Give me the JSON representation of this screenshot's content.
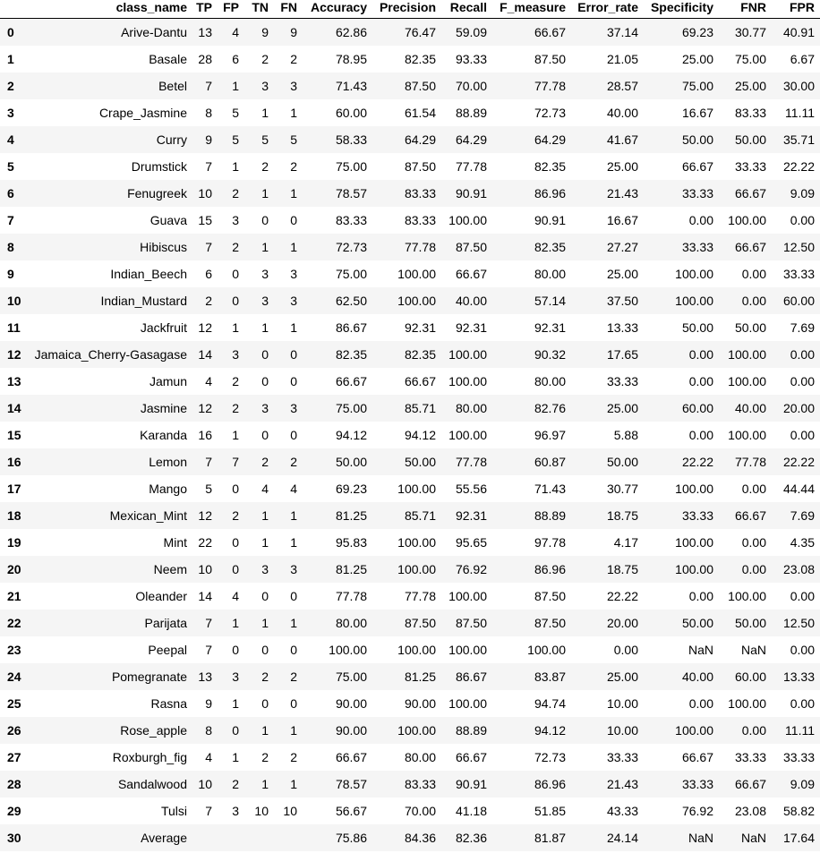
{
  "table": {
    "columns": [
      "",
      "class_name",
      "TP",
      "FP",
      "TN",
      "FN",
      "Accuracy",
      "Precision",
      "Recall",
      "F_measure",
      "Error_rate",
      "Specificity",
      "FNR",
      "FPR"
    ],
    "rows": [
      [
        "0",
        "Arive-Dantu",
        "13",
        "4",
        "9",
        "9",
        "62.86",
        "76.47",
        "59.09",
        "66.67",
        "37.14",
        "69.23",
        "30.77",
        "40.91"
      ],
      [
        "1",
        "Basale",
        "28",
        "6",
        "2",
        "2",
        "78.95",
        "82.35",
        "93.33",
        "87.50",
        "21.05",
        "25.00",
        "75.00",
        "6.67"
      ],
      [
        "2",
        "Betel",
        "7",
        "1",
        "3",
        "3",
        "71.43",
        "87.50",
        "70.00",
        "77.78",
        "28.57",
        "75.00",
        "25.00",
        "30.00"
      ],
      [
        "3",
        "Crape_Jasmine",
        "8",
        "5",
        "1",
        "1",
        "60.00",
        "61.54",
        "88.89",
        "72.73",
        "40.00",
        "16.67",
        "83.33",
        "11.11"
      ],
      [
        "4",
        "Curry",
        "9",
        "5",
        "5",
        "5",
        "58.33",
        "64.29",
        "64.29",
        "64.29",
        "41.67",
        "50.00",
        "50.00",
        "35.71"
      ],
      [
        "5",
        "Drumstick",
        "7",
        "1",
        "2",
        "2",
        "75.00",
        "87.50",
        "77.78",
        "82.35",
        "25.00",
        "66.67",
        "33.33",
        "22.22"
      ],
      [
        "6",
        "Fenugreek",
        "10",
        "2",
        "1",
        "1",
        "78.57",
        "83.33",
        "90.91",
        "86.96",
        "21.43",
        "33.33",
        "66.67",
        "9.09"
      ],
      [
        "7",
        "Guava",
        "15",
        "3",
        "0",
        "0",
        "83.33",
        "83.33",
        "100.00",
        "90.91",
        "16.67",
        "0.00",
        "100.00",
        "0.00"
      ],
      [
        "8",
        "Hibiscus",
        "7",
        "2",
        "1",
        "1",
        "72.73",
        "77.78",
        "87.50",
        "82.35",
        "27.27",
        "33.33",
        "66.67",
        "12.50"
      ],
      [
        "9",
        "Indian_Beech",
        "6",
        "0",
        "3",
        "3",
        "75.00",
        "100.00",
        "66.67",
        "80.00",
        "25.00",
        "100.00",
        "0.00",
        "33.33"
      ],
      [
        "10",
        "Indian_Mustard",
        "2",
        "0",
        "3",
        "3",
        "62.50",
        "100.00",
        "40.00",
        "57.14",
        "37.50",
        "100.00",
        "0.00",
        "60.00"
      ],
      [
        "11",
        "Jackfruit",
        "12",
        "1",
        "1",
        "1",
        "86.67",
        "92.31",
        "92.31",
        "92.31",
        "13.33",
        "50.00",
        "50.00",
        "7.69"
      ],
      [
        "12",
        "Jamaica_Cherry-Gasagase",
        "14",
        "3",
        "0",
        "0",
        "82.35",
        "82.35",
        "100.00",
        "90.32",
        "17.65",
        "0.00",
        "100.00",
        "0.00"
      ],
      [
        "13",
        "Jamun",
        "4",
        "2",
        "0",
        "0",
        "66.67",
        "66.67",
        "100.00",
        "80.00",
        "33.33",
        "0.00",
        "100.00",
        "0.00"
      ],
      [
        "14",
        "Jasmine",
        "12",
        "2",
        "3",
        "3",
        "75.00",
        "85.71",
        "80.00",
        "82.76",
        "25.00",
        "60.00",
        "40.00",
        "20.00"
      ],
      [
        "15",
        "Karanda",
        "16",
        "1",
        "0",
        "0",
        "94.12",
        "94.12",
        "100.00",
        "96.97",
        "5.88",
        "0.00",
        "100.00",
        "0.00"
      ],
      [
        "16",
        "Lemon",
        "7",
        "7",
        "2",
        "2",
        "50.00",
        "50.00",
        "77.78",
        "60.87",
        "50.00",
        "22.22",
        "77.78",
        "22.22"
      ],
      [
        "17",
        "Mango",
        "5",
        "0",
        "4",
        "4",
        "69.23",
        "100.00",
        "55.56",
        "71.43",
        "30.77",
        "100.00",
        "0.00",
        "44.44"
      ],
      [
        "18",
        "Mexican_Mint",
        "12",
        "2",
        "1",
        "1",
        "81.25",
        "85.71",
        "92.31",
        "88.89",
        "18.75",
        "33.33",
        "66.67",
        "7.69"
      ],
      [
        "19",
        "Mint",
        "22",
        "0",
        "1",
        "1",
        "95.83",
        "100.00",
        "95.65",
        "97.78",
        "4.17",
        "100.00",
        "0.00",
        "4.35"
      ],
      [
        "20",
        "Neem",
        "10",
        "0",
        "3",
        "3",
        "81.25",
        "100.00",
        "76.92",
        "86.96",
        "18.75",
        "100.00",
        "0.00",
        "23.08"
      ],
      [
        "21",
        "Oleander",
        "14",
        "4",
        "0",
        "0",
        "77.78",
        "77.78",
        "100.00",
        "87.50",
        "22.22",
        "0.00",
        "100.00",
        "0.00"
      ],
      [
        "22",
        "Parijata",
        "7",
        "1",
        "1",
        "1",
        "80.00",
        "87.50",
        "87.50",
        "87.50",
        "20.00",
        "50.00",
        "50.00",
        "12.50"
      ],
      [
        "23",
        "Peepal",
        "7",
        "0",
        "0",
        "0",
        "100.00",
        "100.00",
        "100.00",
        "100.00",
        "0.00",
        "NaN",
        "NaN",
        "0.00"
      ],
      [
        "24",
        "Pomegranate",
        "13",
        "3",
        "2",
        "2",
        "75.00",
        "81.25",
        "86.67",
        "83.87",
        "25.00",
        "40.00",
        "60.00",
        "13.33"
      ],
      [
        "25",
        "Rasna",
        "9",
        "1",
        "0",
        "0",
        "90.00",
        "90.00",
        "100.00",
        "94.74",
        "10.00",
        "0.00",
        "100.00",
        "0.00"
      ],
      [
        "26",
        "Rose_apple",
        "8",
        "0",
        "1",
        "1",
        "90.00",
        "100.00",
        "88.89",
        "94.12",
        "10.00",
        "100.00",
        "0.00",
        "11.11"
      ],
      [
        "27",
        "Roxburgh_fig",
        "4",
        "1",
        "2",
        "2",
        "66.67",
        "80.00",
        "66.67",
        "72.73",
        "33.33",
        "66.67",
        "33.33",
        "33.33"
      ],
      [
        "28",
        "Sandalwood",
        "10",
        "2",
        "1",
        "1",
        "78.57",
        "83.33",
        "90.91",
        "86.96",
        "21.43",
        "33.33",
        "66.67",
        "9.09"
      ],
      [
        "29",
        "Tulsi",
        "7",
        "3",
        "10",
        "10",
        "56.67",
        "70.00",
        "41.18",
        "51.85",
        "43.33",
        "76.92",
        "23.08",
        "58.82"
      ],
      [
        "30",
        "Average",
        "",
        "",
        "",
        "",
        "75.86",
        "84.36",
        "82.36",
        "81.87",
        "24.14",
        "NaN",
        "NaN",
        "17.64"
      ]
    ]
  }
}
